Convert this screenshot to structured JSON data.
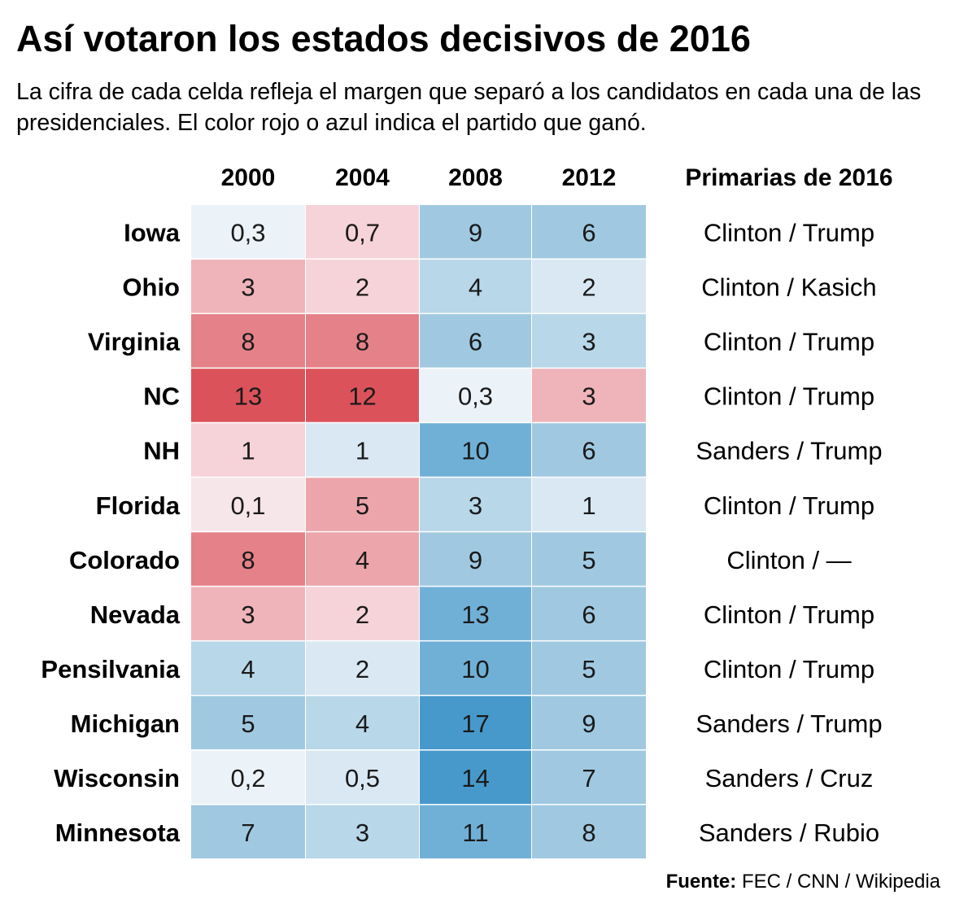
{
  "title": "Así votaron los estados decisivos de 2016",
  "subtitle": "La cifra de cada celda refleja el margen que separó a los candidatos en cada una de las presidenciales. El color rojo o azul indica el partido que ganó.",
  "source_label": "Fuente:",
  "source_text": "FEC / CNN / Wikipedia",
  "chart_data": {
    "type": "table",
    "columns": [
      "2000",
      "2004",
      "2008",
      "2012"
    ],
    "extra_column": "Primarias de 2016",
    "rows": [
      {
        "state": "Iowa",
        "cells": [
          {
            "label": "0,3",
            "value": 0.3,
            "party": "D"
          },
          {
            "label": "0,7",
            "value": 0.7,
            "party": "R"
          },
          {
            "label": "9",
            "value": 9,
            "party": "D"
          },
          {
            "label": "6",
            "value": 6,
            "party": "D"
          }
        ],
        "primaries": "Clinton / Trump"
      },
      {
        "state": "Ohio",
        "cells": [
          {
            "label": "3",
            "value": 3,
            "party": "R"
          },
          {
            "label": "2",
            "value": 2,
            "party": "R"
          },
          {
            "label": "4",
            "value": 4,
            "party": "D"
          },
          {
            "label": "2",
            "value": 2,
            "party": "D"
          }
        ],
        "primaries": "Clinton / Kasich"
      },
      {
        "state": "Virginia",
        "cells": [
          {
            "label": "8",
            "value": 8,
            "party": "R"
          },
          {
            "label": "8",
            "value": 8,
            "party": "R"
          },
          {
            "label": "6",
            "value": 6,
            "party": "D"
          },
          {
            "label": "3",
            "value": 3,
            "party": "D"
          }
        ],
        "primaries": "Clinton / Trump"
      },
      {
        "state": "NC",
        "cells": [
          {
            "label": "13",
            "value": 13,
            "party": "R"
          },
          {
            "label": "12",
            "value": 12,
            "party": "R"
          },
          {
            "label": "0,3",
            "value": 0.3,
            "party": "D"
          },
          {
            "label": "3",
            "value": 3,
            "party": "R"
          }
        ],
        "primaries": "Clinton / Trump"
      },
      {
        "state": "NH",
        "cells": [
          {
            "label": "1",
            "value": 1,
            "party": "R"
          },
          {
            "label": "1",
            "value": 1,
            "party": "D"
          },
          {
            "label": "10",
            "value": 10,
            "party": "D"
          },
          {
            "label": "6",
            "value": 6,
            "party": "D"
          }
        ],
        "primaries": "Sanders / Trump"
      },
      {
        "state": "Florida",
        "cells": [
          {
            "label": "0,1",
            "value": 0.1,
            "party": "R"
          },
          {
            "label": "5",
            "value": 5,
            "party": "R"
          },
          {
            "label": "3",
            "value": 3,
            "party": "D"
          },
          {
            "label": "1",
            "value": 1,
            "party": "D"
          }
        ],
        "primaries": "Clinton / Trump"
      },
      {
        "state": "Colorado",
        "cells": [
          {
            "label": "8",
            "value": 8,
            "party": "R"
          },
          {
            "label": "4",
            "value": 4,
            "party": "R"
          },
          {
            "label": "9",
            "value": 9,
            "party": "D"
          },
          {
            "label": "5",
            "value": 5,
            "party": "D"
          }
        ],
        "primaries": "Clinton / —"
      },
      {
        "state": "Nevada",
        "cells": [
          {
            "label": "3",
            "value": 3,
            "party": "R"
          },
          {
            "label": "2",
            "value": 2,
            "party": "R"
          },
          {
            "label": "13",
            "value": 13,
            "party": "D"
          },
          {
            "label": "6",
            "value": 6,
            "party": "D"
          }
        ],
        "primaries": "Clinton / Trump"
      },
      {
        "state": "Pensilvania",
        "cells": [
          {
            "label": "4",
            "value": 4,
            "party": "D"
          },
          {
            "label": "2",
            "value": 2,
            "party": "D"
          },
          {
            "label": "10",
            "value": 10,
            "party": "D"
          },
          {
            "label": "5",
            "value": 5,
            "party": "D"
          }
        ],
        "primaries": "Clinton / Trump"
      },
      {
        "state": "Michigan",
        "cells": [
          {
            "label": "5",
            "value": 5,
            "party": "D"
          },
          {
            "label": "4",
            "value": 4,
            "party": "D"
          },
          {
            "label": "17",
            "value": 17,
            "party": "D"
          },
          {
            "label": "9",
            "value": 9,
            "party": "D"
          }
        ],
        "primaries": "Sanders / Trump"
      },
      {
        "state": "Wisconsin",
        "cells": [
          {
            "label": "0,2",
            "value": 0.2,
            "party": "D"
          },
          {
            "label": "0,5",
            "value": 0.5,
            "party": "D"
          },
          {
            "label": "14",
            "value": 14,
            "party": "D"
          },
          {
            "label": "7",
            "value": 7,
            "party": "D"
          }
        ],
        "primaries": "Sanders / Cruz"
      },
      {
        "state": "Minnesota",
        "cells": [
          {
            "label": "7",
            "value": 7,
            "party": "D"
          },
          {
            "label": "3",
            "value": 3,
            "party": "D"
          },
          {
            "label": "11",
            "value": 11,
            "party": "D"
          },
          {
            "label": "8",
            "value": 8,
            "party": "D"
          }
        ],
        "primaries": "Sanders / Rubio"
      }
    ],
    "colors": {
      "R": [
        "#f7e6e9",
        "#f5d3d8",
        "#efb4ba",
        "#eba5ab",
        "#e58189",
        "#db525b"
      ],
      "D": [
        "#ecf3f8",
        "#d9e8f3",
        "#b8d7e9",
        "#a0c9e1",
        "#70b0d7",
        "#4799cc"
      ]
    }
  }
}
